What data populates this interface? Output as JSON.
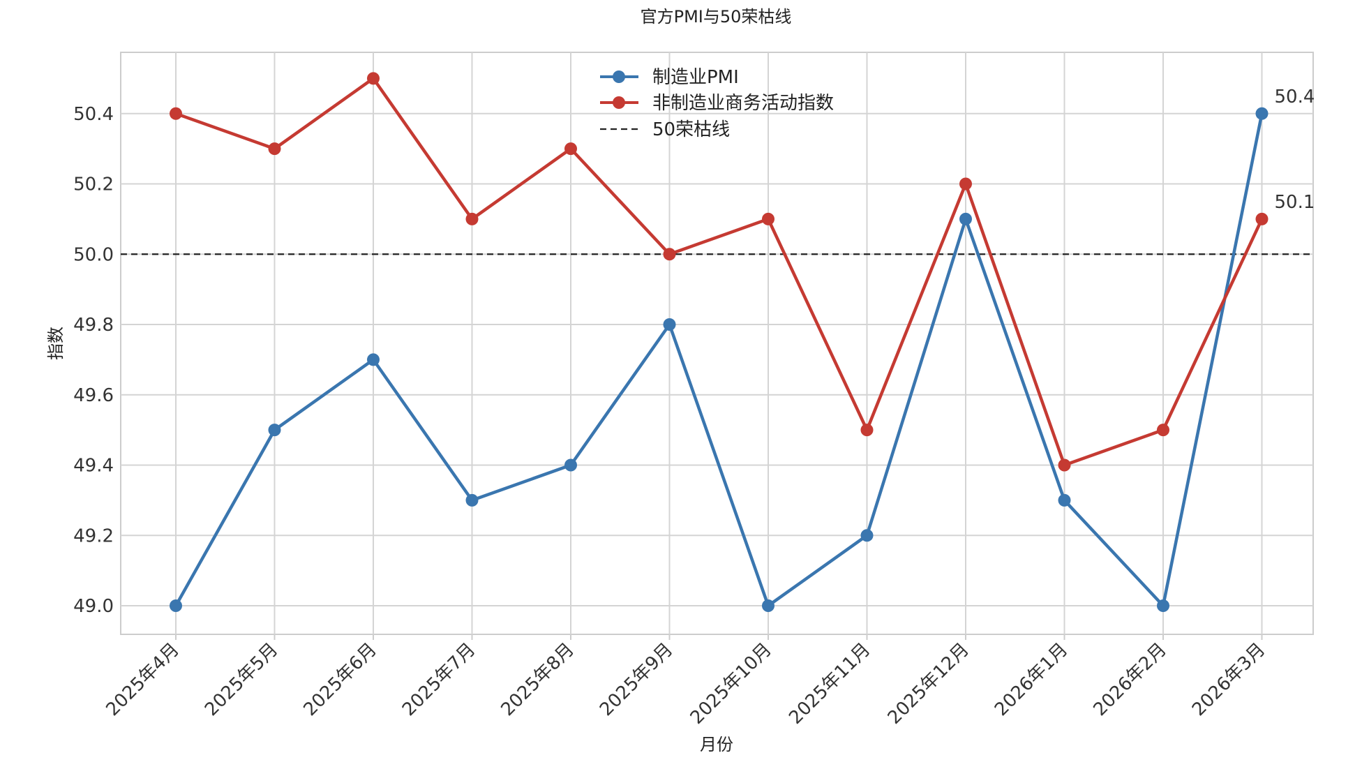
{
  "chart_data": {
    "type": "line",
    "title": "官方PMI与50荣枯线",
    "xlabel": "月份",
    "ylabel": "指数",
    "categories": [
      "2025年4月",
      "2025年5月",
      "2025年6月",
      "2025年7月",
      "2025年8月",
      "2025年9月",
      "2025年10月",
      "2025年11月",
      "2025年12月",
      "2026年1月",
      "2026年2月",
      "2026年3月"
    ],
    "series": [
      {
        "name": "制造业PMI",
        "color": "#3a76af",
        "values": [
          49.0,
          49.5,
          49.7,
          49.3,
          49.4,
          49.8,
          49.0,
          49.2,
          50.1,
          49.3,
          49.0,
          50.4
        ]
      },
      {
        "name": "非制造业商务活动指数",
        "color": "#c53a32",
        "values": [
          50.4,
          50.3,
          50.5,
          50.1,
          50.3,
          50.0,
          50.1,
          49.5,
          50.2,
          49.4,
          49.5,
          50.1
        ]
      }
    ],
    "reference_line": {
      "name": "50荣枯线",
      "value": 50.0,
      "color": "#222222",
      "style": "dashed"
    },
    "yticks": [
      "49.0",
      "49.2",
      "49.4",
      "49.6",
      "49.8",
      "50.0",
      "50.2",
      "50.4"
    ],
    "ylim": [
      48.93,
      50.58
    ],
    "grid": true,
    "legend_position": "top-center",
    "end_labels": [
      {
        "series": "制造业PMI",
        "text": "50.4"
      },
      {
        "series": "非制造业商务活动指数",
        "text": "50.1"
      }
    ]
  }
}
